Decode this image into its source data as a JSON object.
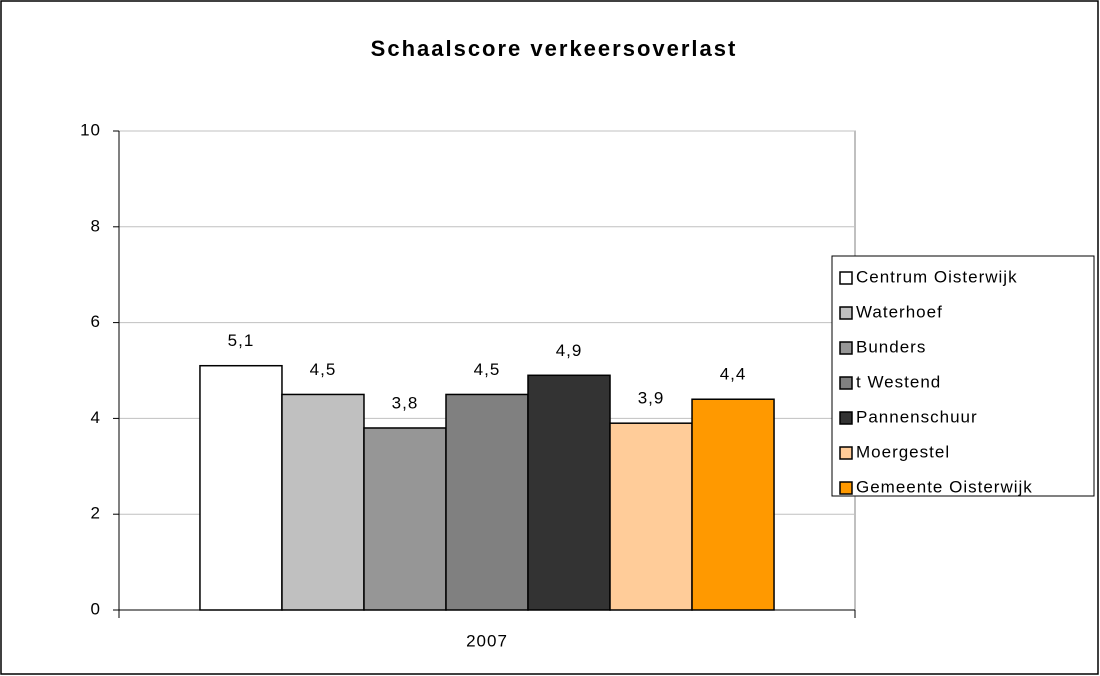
{
  "chart_data": {
    "type": "bar",
    "title": "Schaalscore verkeersoverlast",
    "categories": [
      "2007"
    ],
    "series": [
      {
        "name": "Centrum Oisterwijk",
        "color": "#ffffff",
        "values": [
          5.1
        ],
        "value_labels": [
          "5,1"
        ]
      },
      {
        "name": "Waterhoef",
        "color": "#c0c0c0",
        "values": [
          4.5
        ],
        "value_labels": [
          "4,5"
        ]
      },
      {
        "name": "Bunders",
        "color": "#969696",
        "values": [
          3.8
        ],
        "value_labels": [
          "3,8"
        ]
      },
      {
        "name": "t Westend",
        "color": "#808080",
        "values": [
          4.5
        ],
        "value_labels": [
          "4,5"
        ]
      },
      {
        "name": "Pannenschuur",
        "color": "#333333",
        "values": [
          4.9
        ],
        "value_labels": [
          "4,9"
        ]
      },
      {
        "name": "Moergestel",
        "color": "#ffcc99",
        "values": [
          3.9
        ],
        "value_labels": [
          "3,9"
        ]
      },
      {
        "name": "Gemeente Oisterwijk",
        "color": "#ff9900",
        "values": [
          4.4
        ],
        "value_labels": [
          "4,4"
        ]
      }
    ],
    "ylim": [
      0,
      10
    ],
    "yticks": [
      0,
      2,
      4,
      6,
      8,
      10
    ],
    "grid": true,
    "legend": "right"
  }
}
